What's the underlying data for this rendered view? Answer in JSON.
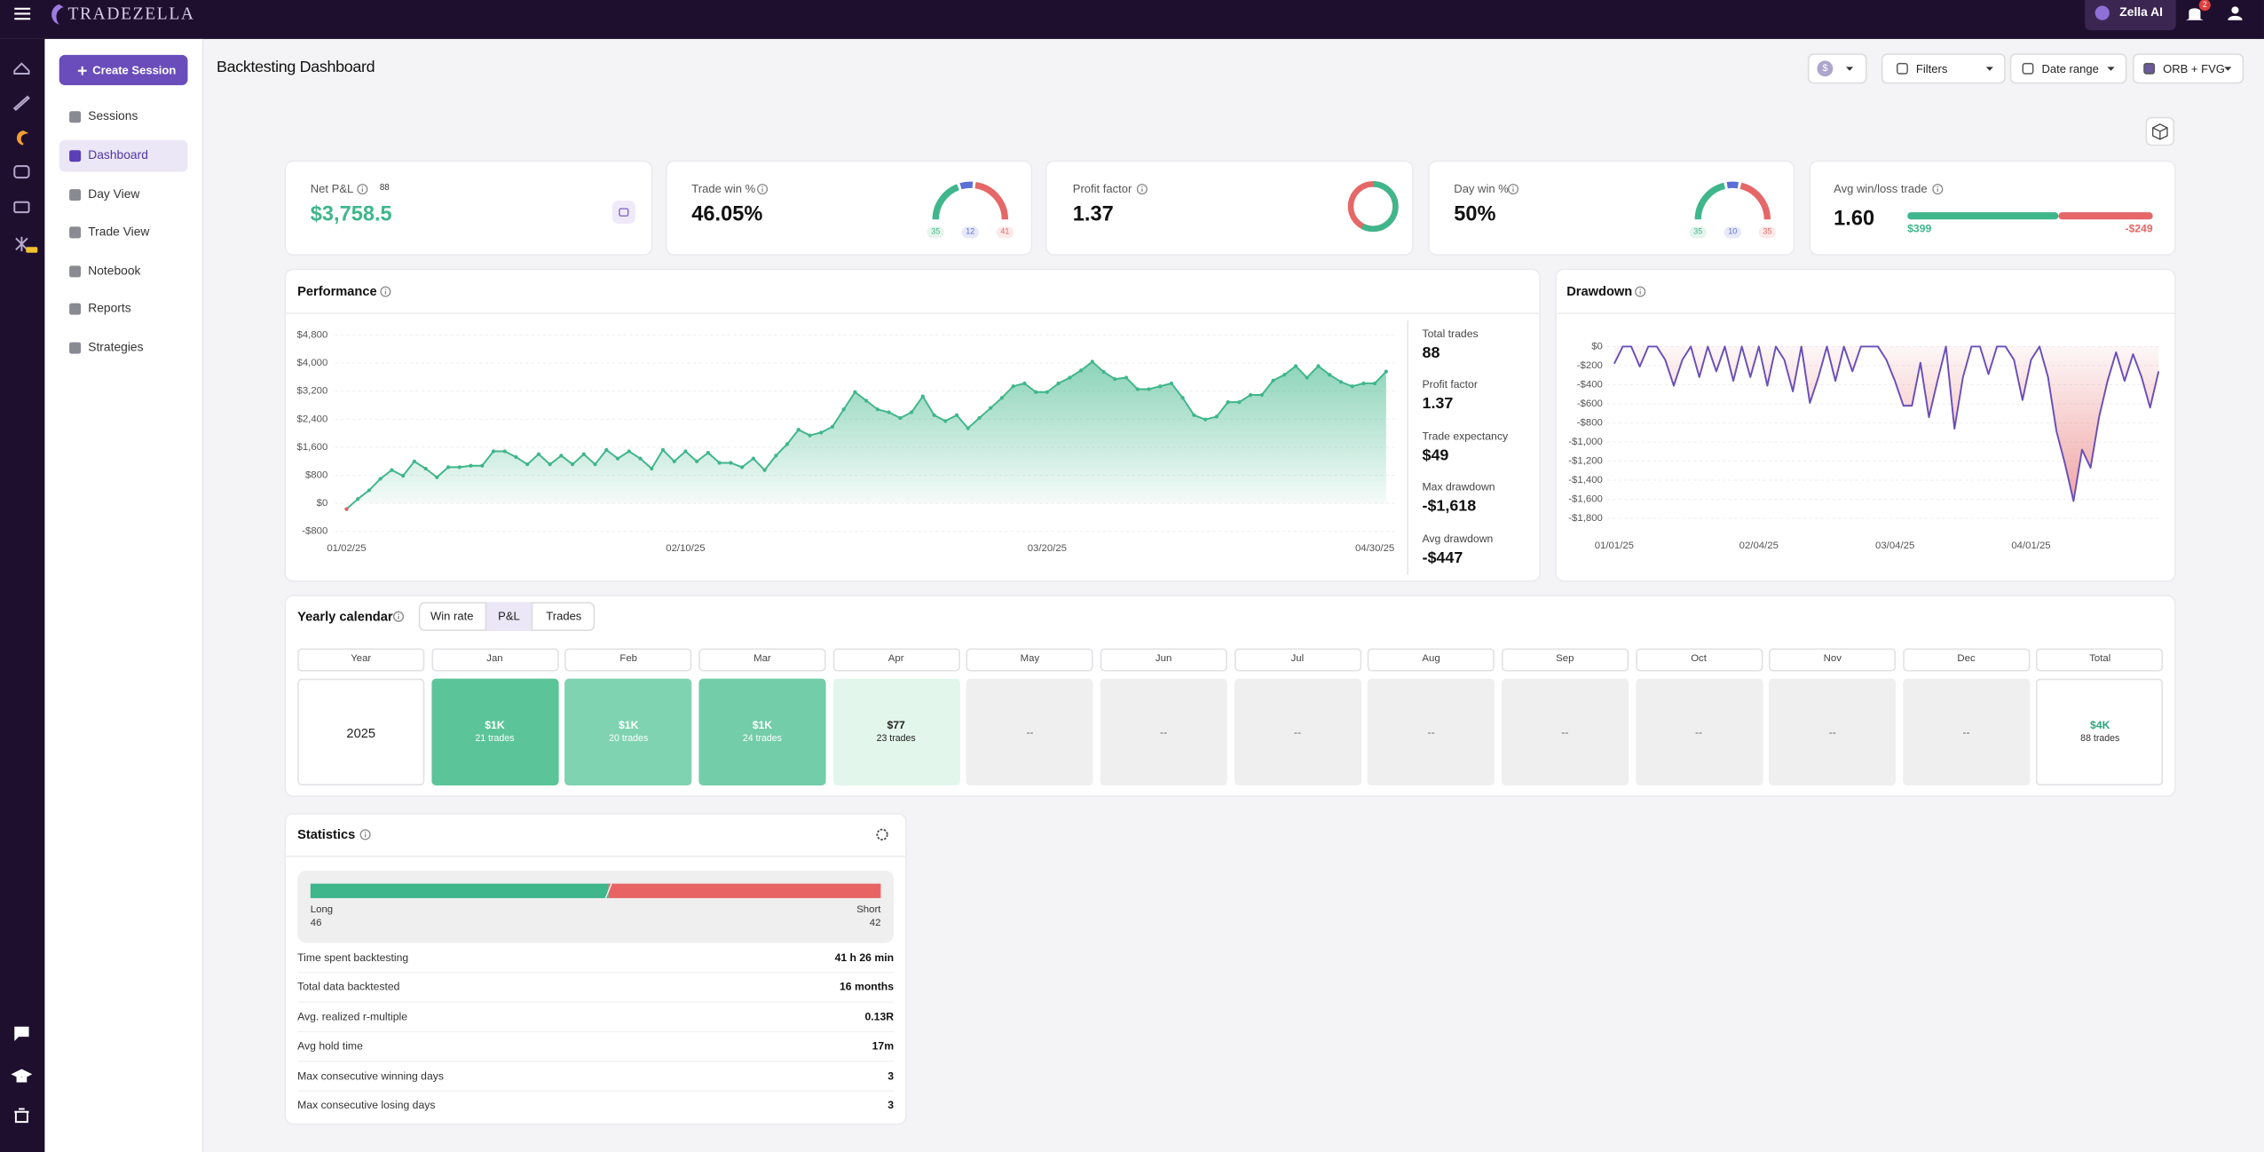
{
  "header": {
    "logo": "TRADEZELLA",
    "zella_ai": "Zella AI",
    "notifications": "2"
  },
  "sidebar": {
    "create_session": "Create Session",
    "items": [
      "Sessions",
      "Dashboard",
      "Day View",
      "Trade View",
      "Notebook",
      "Reports",
      "Strategies"
    ]
  },
  "page": {
    "title": "Backtesting Dashboard",
    "currency": "$",
    "controls": [
      "Filters",
      "Date range",
      "ORB + FVG"
    ]
  },
  "kpis": {
    "net_pnl": {
      "label": "Net P&L",
      "trades": "88",
      "value": "$3,758.5"
    },
    "trade_win": {
      "label": "Trade win %",
      "value": "46.05%",
      "wins": 35,
      "breakeven": 12,
      "losses": 41
    },
    "profit_factor": {
      "label": "Profit factor",
      "value": 1.37
    },
    "day_win": {
      "label": "Day win %",
      "value": "50%",
      "wins": 35,
      "breakeven": 10,
      "losses": 35
    },
    "avg_win_loss": {
      "label": "Avg win/loss trade",
      "value": "1.60",
      "avg_win": {
        "value": 399,
        "label": "$399"
      },
      "avg_loss": {
        "value": -249,
        "label": "-$249"
      }
    }
  },
  "performance_stats": [
    {
      "label": "Total trades",
      "value": "88"
    },
    {
      "label": "Profit factor",
      "value": "1.37"
    },
    {
      "label": "Trade expectancy",
      "value": "$49"
    },
    {
      "label": "Max drawdown",
      "value": "-$1,618"
    },
    {
      "label": "Avg drawdown",
      "value": "-$447"
    }
  ],
  "chart_data": [
    {
      "type": "area",
      "title": "Performance",
      "color": "#3fb68b",
      "negative_color": "#e35d5d",
      "markers": true,
      "grid": true,
      "categories": [
        "01/02/25",
        null,
        null,
        null,
        null,
        null,
        null,
        null,
        null,
        null,
        null,
        null,
        null,
        null,
        null,
        null,
        null,
        null,
        null,
        null,
        null,
        null,
        null,
        null,
        null,
        null,
        null,
        null,
        null,
        null,
        "02/10/25",
        null,
        null,
        null,
        null,
        null,
        null,
        null,
        null,
        null,
        null,
        null,
        null,
        null,
        null,
        null,
        null,
        null,
        null,
        null,
        null,
        null,
        null,
        null,
        null,
        null,
        null,
        null,
        null,
        null,
        null,
        null,
        "03/20/25",
        null,
        null,
        null,
        null,
        null,
        null,
        null,
        null,
        null,
        null,
        null,
        null,
        null,
        null,
        null,
        null,
        null,
        null,
        null,
        null,
        null,
        null,
        null,
        null,
        null,
        null,
        null,
        null,
        "04/30/25",
        null
      ],
      "values": [
        -165,
        124,
        371,
        700,
        948,
        783,
        1195,
        989,
        742,
        1030,
        1030,
        1071,
        1071,
        1483,
        1483,
        1318,
        1112,
        1401,
        1112,
        1360,
        1112,
        1401,
        1112,
        1524,
        1277,
        1483,
        1277,
        989,
        1524,
        1195,
        1483,
        1195,
        1442,
        1154,
        1154,
        1030,
        1277,
        948,
        1360,
        1689,
        2101,
        1936,
        2019,
        2184,
        2678,
        3172,
        2925,
        2678,
        2596,
        2431,
        2596,
        3049,
        2513,
        2348,
        2513,
        2142,
        2431,
        2719,
        3008,
        3337,
        3420,
        3172,
        3172,
        3420,
        3584,
        3790,
        4038,
        3749,
        3543,
        3584,
        3255,
        3255,
        3337,
        3420,
        3008,
        2513,
        2390,
        2472,
        2884,
        2884,
        3090,
        3090,
        3502,
        3667,
        3914,
        3584,
        3914,
        3667,
        3461,
        3337,
        3420,
        3420,
        3758.5
      ],
      "ylim": [
        -800,
        4800
      ],
      "yticks": [
        {
          "value": -800,
          "label": "-$800"
        },
        {
          "value": 0,
          "label": "$0"
        },
        {
          "value": 800,
          "label": "$800"
        },
        {
          "value": 1600,
          "label": "$1,600"
        },
        {
          "value": 2400,
          "label": "$2,400"
        },
        {
          "value": 3200,
          "label": "$3,200"
        },
        {
          "value": 4000,
          "label": "$4,000"
        },
        {
          "value": 4800,
          "label": "$4,800"
        }
      ]
    },
    {
      "type": "area",
      "title": "Drawdown",
      "color": "#6a4fb8",
      "area_color": "#e35d5d",
      "grid": true,
      "categories": [
        "01/01/25",
        null,
        null,
        null,
        null,
        null,
        null,
        null,
        null,
        null,
        null,
        null,
        null,
        null,
        null,
        null,
        null,
        "02/04/25",
        null,
        null,
        null,
        null,
        null,
        null,
        null,
        null,
        null,
        null,
        null,
        null,
        null,
        null,
        null,
        "03/04/25",
        null,
        null,
        null,
        null,
        null,
        null,
        null,
        null,
        null,
        null,
        null,
        null,
        null,
        null,
        null,
        "04/01/25",
        null,
        null,
        null,
        null,
        null,
        null,
        null,
        null,
        null,
        null,
        null,
        null,
        null,
        null,
        null
      ],
      "values": [
        -180,
        0,
        0,
        -210,
        0,
        0,
        -140,
        -410,
        -140,
        0,
        -320,
        0,
        -260,
        0,
        -360,
        0,
        -320,
        0,
        -410,
        0,
        -140,
        -470,
        0,
        -590,
        -320,
        0,
        -360,
        0,
        -260,
        0,
        0,
        0,
        -140,
        -360,
        -620,
        -620,
        -170,
        -740,
        -360,
        0,
        -860,
        -320,
        0,
        0,
        -290,
        0,
        0,
        -140,
        -560,
        -140,
        0,
        -320,
        -890,
        -1230,
        -1618,
        -1080,
        -1270,
        -740,
        -360,
        -60,
        -360,
        -80,
        -320,
        -640,
        -260
      ],
      "ylim": [
        -1800,
        0
      ],
      "yticks": [
        {
          "value": 0,
          "label": "$0"
        },
        {
          "value": -200,
          "label": "-$200"
        },
        {
          "value": -400,
          "label": "-$400"
        },
        {
          "value": -600,
          "label": "-$600"
        },
        {
          "value": -800,
          "label": "-$800"
        },
        {
          "value": -1000,
          "label": "-$1,000"
        },
        {
          "value": -1200,
          "label": "-$1,200"
        },
        {
          "value": -1400,
          "label": "-$1,400"
        },
        {
          "value": -1600,
          "label": "-$1,600"
        },
        {
          "value": -1800,
          "label": "-$1,800"
        }
      ]
    }
  ],
  "calendar": {
    "title": "Yearly calendar",
    "tabs": [
      "Win rate",
      "P&L",
      "Trades"
    ],
    "headers": [
      "Year",
      "Jan",
      "Feb",
      "Mar",
      "Apr",
      "May",
      "Jun",
      "Jul",
      "Aug",
      "Sep",
      "Oct",
      "Nov",
      "Dec",
      "Total"
    ],
    "year": "2025",
    "months": [
      {
        "pnl": "$1K",
        "trades": "21 trades",
        "color": "#5cc499"
      },
      {
        "pnl": "$1K",
        "trades": "20 trades",
        "color": "#7fd3b1"
      },
      {
        "pnl": "$1K",
        "trades": "24 trades",
        "color": "#72cda8"
      },
      {
        "pnl": "$77",
        "trades": "23 trades",
        "color": "#e3f6ec"
      },
      {
        "pnl": "--"
      },
      {
        "pnl": "--"
      },
      {
        "pnl": "--"
      },
      {
        "pnl": "--"
      },
      {
        "pnl": "--"
      },
      {
        "pnl": "--"
      },
      {
        "pnl": "--"
      },
      {
        "pnl": "--"
      }
    ],
    "total": {
      "pnl": "$4K",
      "trades": "88 trades"
    }
  },
  "statistics": {
    "title": "Statistics",
    "long": {
      "label": "Long",
      "value": 46
    },
    "short": {
      "label": "Short",
      "value": 42
    },
    "rows": [
      {
        "label": "Time spent backtesting",
        "value": "41 h 26 min"
      },
      {
        "label": "Total data backtested",
        "value": "16 months"
      },
      {
        "label": "Avg. realized r-multiple",
        "value": "0.13R"
      },
      {
        "label": "Avg hold time",
        "value": "17m"
      },
      {
        "label": "Max consecutive winning days",
        "value": "3"
      },
      {
        "label": "Max consecutive losing days",
        "value": "3"
      }
    ]
  }
}
